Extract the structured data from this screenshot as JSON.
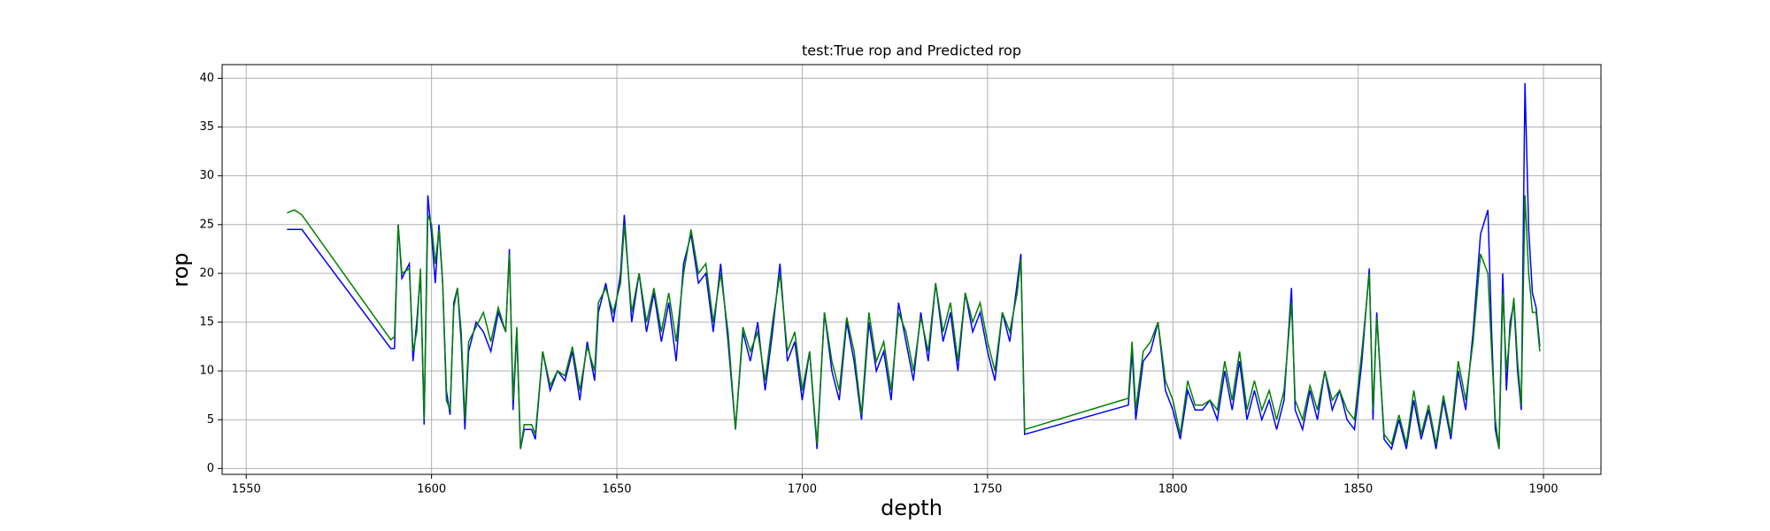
{
  "chart_data": {
    "type": "line",
    "title": "test:True rop and Predicted rop",
    "xlabel": "depth",
    "ylabel": "rop",
    "x": [
      1561,
      1563,
      1565,
      1589,
      1590,
      1591,
      1592,
      1594,
      1595,
      1596,
      1597,
      1598,
      1599,
      1600,
      1601,
      1602,
      1603,
      1604,
      1605,
      1606,
      1607,
      1608,
      1609,
      1610,
      1612,
      1614,
      1616,
      1618,
      1620,
      1621,
      1622,
      1623,
      1624,
      1625,
      1627,
      1628,
      1630,
      1632,
      1634,
      1636,
      1638,
      1640,
      1642,
      1644,
      1645,
      1647,
      1649,
      1651,
      1652,
      1654,
      1656,
      1658,
      1660,
      1662,
      1664,
      1666,
      1668,
      1670,
      1672,
      1674,
      1676,
      1678,
      1680,
      1682,
      1684,
      1686,
      1688,
      1690,
      1692,
      1694,
      1696,
      1698,
      1700,
      1702,
      1704,
      1706,
      1708,
      1710,
      1712,
      1714,
      1716,
      1718,
      1720,
      1722,
      1724,
      1726,
      1728,
      1730,
      1732,
      1734,
      1736,
      1738,
      1740,
      1742,
      1744,
      1746,
      1748,
      1750,
      1752,
      1754,
      1756,
      1758,
      1759,
      1760,
      1788,
      1789,
      1790,
      1792,
      1794,
      1796,
      1798,
      1800,
      1802,
      1804,
      1806,
      1808,
      1810,
      1812,
      1814,
      1816,
      1818,
      1820,
      1822,
      1824,
      1826,
      1828,
      1830,
      1832,
      1833,
      1835,
      1837,
      1839,
      1841,
      1843,
      1845,
      1847,
      1849,
      1851,
      1853,
      1854,
      1855,
      1857,
      1859,
      1861,
      1863,
      1865,
      1867,
      1869,
      1871,
      1873,
      1875,
      1877,
      1879,
      1881,
      1883,
      1885,
      1886,
      1887,
      1888,
      1889,
      1890,
      1891,
      1892,
      1893,
      1894,
      1895,
      1896,
      1897,
      1898,
      1899
    ],
    "series": [
      {
        "color": "#0000ff",
        "values": [
          24.5,
          24.5,
          24.5,
          12.3,
          12.3,
          25,
          19.5,
          21,
          11,
          15,
          20,
          4.5,
          28,
          24,
          19,
          25,
          19,
          8,
          5.5,
          17,
          18.5,
          13,
          4,
          12,
          15,
          14,
          12,
          16,
          14,
          22.5,
          6,
          14,
          2,
          4,
          4,
          3,
          12,
          8,
          10,
          9,
          12,
          7,
          13,
          9,
          16,
          19,
          15,
          20,
          26,
          15,
          20,
          14,
          18,
          13,
          17,
          11,
          21,
          24,
          19,
          20,
          14,
          21,
          13,
          4,
          14,
          11,
          15,
          8,
          14,
          21,
          11,
          13,
          7,
          12,
          2,
          16,
          10,
          7,
          15,
          11,
          5,
          15,
          10,
          12,
          7,
          17,
          13,
          9,
          16,
          11,
          19,
          13,
          16,
          10,
          18,
          14,
          16,
          12,
          9,
          16,
          13,
          19,
          22,
          3.5,
          6.5,
          12,
          5,
          11,
          12,
          15,
          8,
          6,
          3,
          8,
          6,
          6,
          7,
          5,
          10,
          6,
          11,
          5,
          8,
          5,
          7,
          4,
          7,
          18.5,
          6,
          4,
          8,
          5,
          10,
          6,
          8,
          5,
          4,
          11,
          20.5,
          5,
          16,
          3,
          2,
          5,
          2,
          7,
          3,
          6,
          2,
          7,
          3,
          10,
          6,
          14,
          24,
          26.5,
          14,
          4,
          2,
          20,
          8,
          15,
          17,
          10,
          6,
          39.5,
          24.5,
          18,
          16.5,
          12.5
        ]
      },
      {
        "color": "#008000",
        "values": [
          26.2,
          26.5,
          26,
          13.2,
          13.5,
          25,
          20,
          20.5,
          12,
          14,
          20.5,
          5,
          26,
          25,
          21,
          24.5,
          19,
          7,
          6,
          16.5,
          18.5,
          14,
          5,
          13,
          14.5,
          16,
          13,
          16.5,
          14,
          22,
          7,
          14.5,
          2,
          4.5,
          4.5,
          3.5,
          12,
          8.5,
          10,
          9.5,
          12.5,
          8,
          12.5,
          10,
          17,
          18.5,
          16,
          19,
          25,
          16,
          20,
          15,
          18.5,
          14,
          18,
          13,
          20,
          24.5,
          20,
          21,
          15,
          20,
          14,
          4,
          14.5,
          12,
          14,
          9,
          15,
          20,
          12,
          14,
          8,
          12,
          2.5,
          16,
          11,
          8,
          15.5,
          12,
          5.5,
          16,
          11,
          13,
          8,
          16,
          14,
          10,
          15.5,
          12,
          19,
          14,
          17,
          11,
          18,
          15,
          17,
          13,
          10,
          16,
          14,
          18,
          21.5,
          4,
          7.2,
          13,
          6,
          12,
          13,
          15,
          9,
          7,
          3.5,
          9,
          6.5,
          6.5,
          7,
          6,
          11,
          7,
          12,
          6,
          9,
          6,
          8,
          5,
          8,
          17,
          7,
          5,
          8.5,
          6,
          10,
          7,
          8,
          6,
          5,
          12,
          20,
          6,
          15.5,
          3.5,
          2.5,
          5.5,
          2.5,
          8,
          3.5,
          6.5,
          2.5,
          7.5,
          3.5,
          11,
          7,
          13,
          22,
          20,
          12,
          5,
          2,
          18,
          10,
          14,
          17.5,
          11,
          6.5,
          28,
          20,
          16,
          16,
          12
        ]
      }
    ],
    "xlim": [
      1543.5,
      1915.5
    ],
    "xticks": [
      1550,
      1600,
      1650,
      1700,
      1750,
      1800,
      1850,
      1900
    ],
    "ylim": [
      -0.6,
      41.4
    ],
    "yticks": [
      0,
      5,
      10,
      15,
      20,
      25,
      30,
      35,
      40
    ],
    "grid": true
  }
}
